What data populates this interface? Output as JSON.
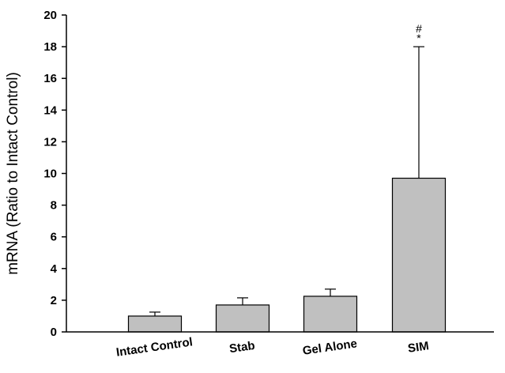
{
  "chart_data": {
    "type": "bar",
    "categories": [
      "Intact Control",
      "Stab",
      "Gel Alone",
      "SIM"
    ],
    "values": [
      1.0,
      1.7,
      2.25,
      9.7
    ],
    "error_upper": [
      1.25,
      2.15,
      2.7,
      18.0
    ],
    "ylabel": "mRNA (Ratio to Intact Control)",
    "xlabel": "",
    "ylim": [
      0,
      20
    ],
    "yticks": [
      0,
      2,
      4,
      6,
      8,
      10,
      12,
      14,
      16,
      18,
      20
    ],
    "grid": false,
    "bar_color": "#c0c0c0",
    "annotations": [
      {
        "category": "SIM",
        "symbols": [
          "#",
          "*"
        ]
      }
    ]
  }
}
